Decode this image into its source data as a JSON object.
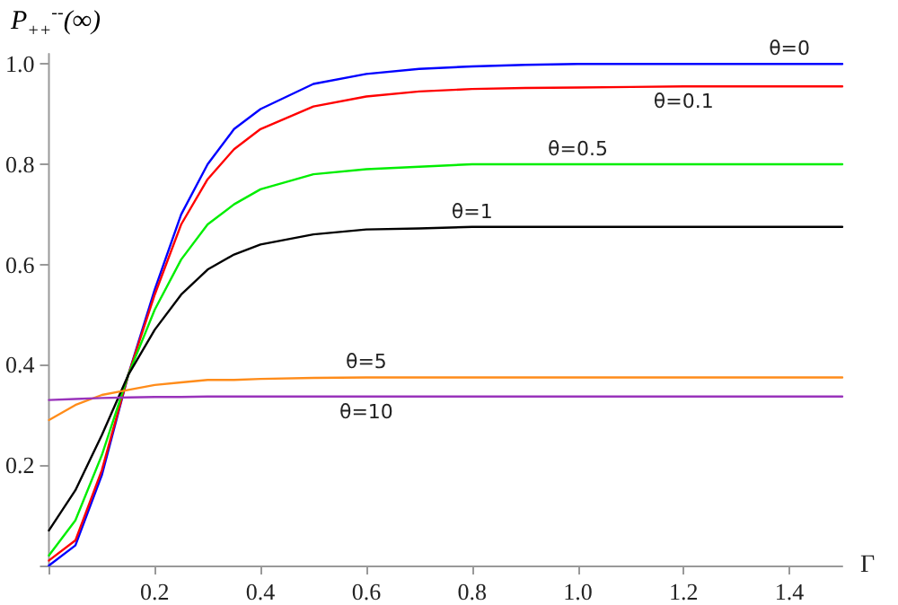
{
  "chart_data": {
    "type": "line",
    "xlabel": "Γ",
    "ylabel": "P$_{++}$$^{--}$(∞)",
    "x": [
      0,
      0.05,
      0.1,
      0.15,
      0.2,
      0.25,
      0.3,
      0.35,
      0.4,
      0.5,
      0.6,
      0.7,
      0.8,
      0.9,
      1.0,
      1.1,
      1.2,
      1.3,
      1.4,
      1.5
    ],
    "series": [
      {
        "name": "θ=0",
        "color": "#0000ff",
        "values": [
          0,
          0.04,
          0.18,
          0.38,
          0.55,
          0.7,
          0.8,
          0.87,
          0.91,
          0.96,
          0.98,
          0.99,
          0.995,
          0.998,
          1.0,
          1.0,
          1.0,
          1.0,
          1.0,
          1.0
        ]
      },
      {
        "name": "θ=0.1",
        "color": "#ff0000",
        "values": [
          0.01,
          0.05,
          0.19,
          0.38,
          0.54,
          0.68,
          0.77,
          0.83,
          0.87,
          0.915,
          0.935,
          0.945,
          0.95,
          0.952,
          0.953,
          0.954,
          0.955,
          0.955,
          0.955,
          0.955
        ]
      },
      {
        "name": "θ=0.5",
        "color": "#00ee00",
        "values": [
          0.02,
          0.09,
          0.22,
          0.38,
          0.51,
          0.61,
          0.68,
          0.72,
          0.75,
          0.78,
          0.79,
          0.795,
          0.8,
          0.8,
          0.8,
          0.8,
          0.8,
          0.8,
          0.8,
          0.8
        ]
      },
      {
        "name": "θ=1",
        "color": "#000000",
        "values": [
          0.07,
          0.15,
          0.26,
          0.38,
          0.47,
          0.54,
          0.59,
          0.62,
          0.64,
          0.66,
          0.67,
          0.672,
          0.675,
          0.675,
          0.675,
          0.675,
          0.675,
          0.675,
          0.675,
          0.675
        ]
      },
      {
        "name": "θ=5",
        "color": "#ff8c1a",
        "values": [
          0.29,
          0.32,
          0.34,
          0.35,
          0.36,
          0.365,
          0.37,
          0.37,
          0.372,
          0.374,
          0.375,
          0.375,
          0.375,
          0.375,
          0.375,
          0.375,
          0.375,
          0.375,
          0.375,
          0.375
        ]
      },
      {
        "name": "θ=10",
        "color": "#9933bb",
        "values": [
          0.33,
          0.332,
          0.334,
          0.335,
          0.336,
          0.336,
          0.337,
          0.337,
          0.337,
          0.337,
          0.337,
          0.337,
          0.337,
          0.337,
          0.337,
          0.337,
          0.337,
          0.337,
          0.337,
          0.337
        ]
      }
    ],
    "xlim": [
      0,
      1.5
    ],
    "xticks": [
      {
        "value": 0,
        "label": null
      },
      0.2,
      0.4,
      0.6,
      0.8,
      {
        "value": 1,
        "label": "1.0"
      },
      1.2,
      1.4
    ],
    "ylim": [
      0,
      1.02
    ],
    "yticks": [
      {
        "value": 0,
        "label": null
      },
      0.2,
      0.4,
      0.6,
      0.8,
      {
        "value": 1,
        "label": "1.0"
      }
    ],
    "grid": false,
    "legend": false,
    "marker": "none",
    "line_style": "solid"
  }
}
